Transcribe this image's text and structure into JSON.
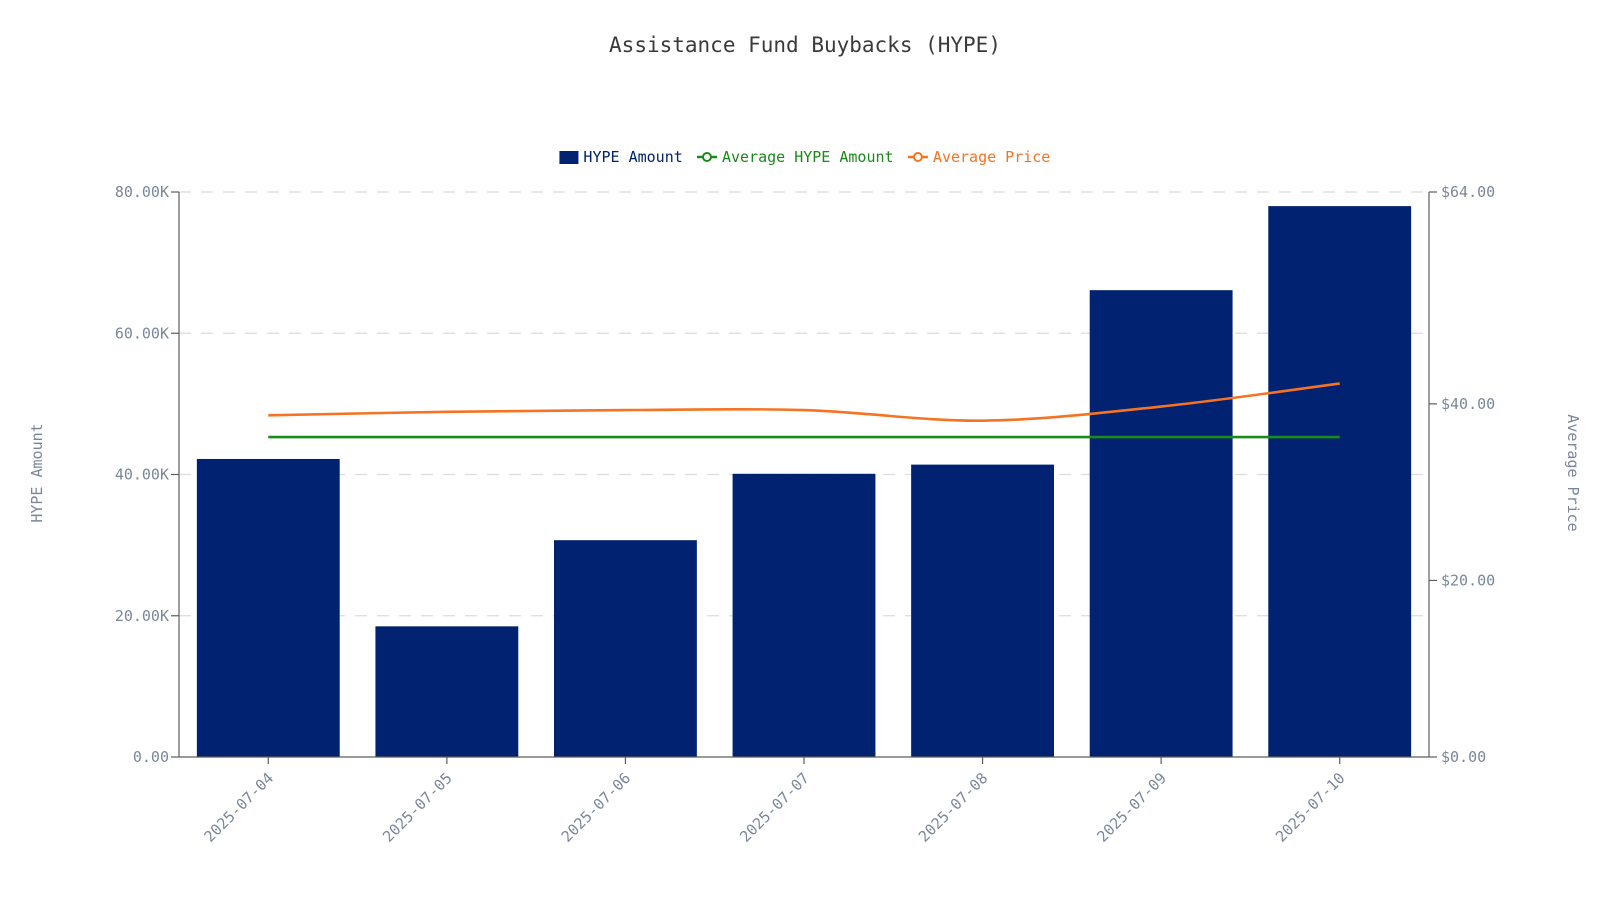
{
  "chart_data": {
    "type": "bar",
    "title": "Assistance Fund Buybacks (HYPE)",
    "categories": [
      "2025-07-04",
      "2025-07-05",
      "2025-07-06",
      "2025-07-07",
      "2025-07-08",
      "2025-07-09",
      "2025-07-10"
    ],
    "series": [
      {
        "name": "HYPE Amount",
        "type": "bar",
        "axis": "left",
        "color": "#002270",
        "values": [
          42200,
          18500,
          30700,
          40100,
          41400,
          66100,
          78000
        ]
      },
      {
        "name": "Average HYPE Amount",
        "type": "line",
        "axis": "left",
        "color": "#1a8a1a",
        "values": [
          45300,
          45300,
          45300,
          45300,
          45300,
          45300,
          45300
        ]
      },
      {
        "name": "Average Price",
        "type": "line",
        "axis": "right",
        "color": "#f57322",
        "values": [
          38.7,
          39.1,
          39.3,
          39.3,
          38.1,
          39.7,
          42.3
        ]
      }
    ],
    "y_left": {
      "label": "HYPE Amount",
      "ylim": [
        0,
        80000
      ],
      "ticks": [
        0,
        20000,
        40000,
        60000,
        80000
      ],
      "tick_labels": [
        "0.00",
        "20.00K",
        "40.00K",
        "60.00K",
        "80.00K"
      ]
    },
    "y_right": {
      "label": "Average Price",
      "ylim": [
        0,
        64
      ],
      "ticks": [
        0,
        20,
        40,
        64
      ],
      "tick_labels": [
        "$0.00",
        "$20.00",
        "$40.00",
        "$64.00"
      ]
    },
    "grid": true,
    "legend_position": "top-center"
  }
}
